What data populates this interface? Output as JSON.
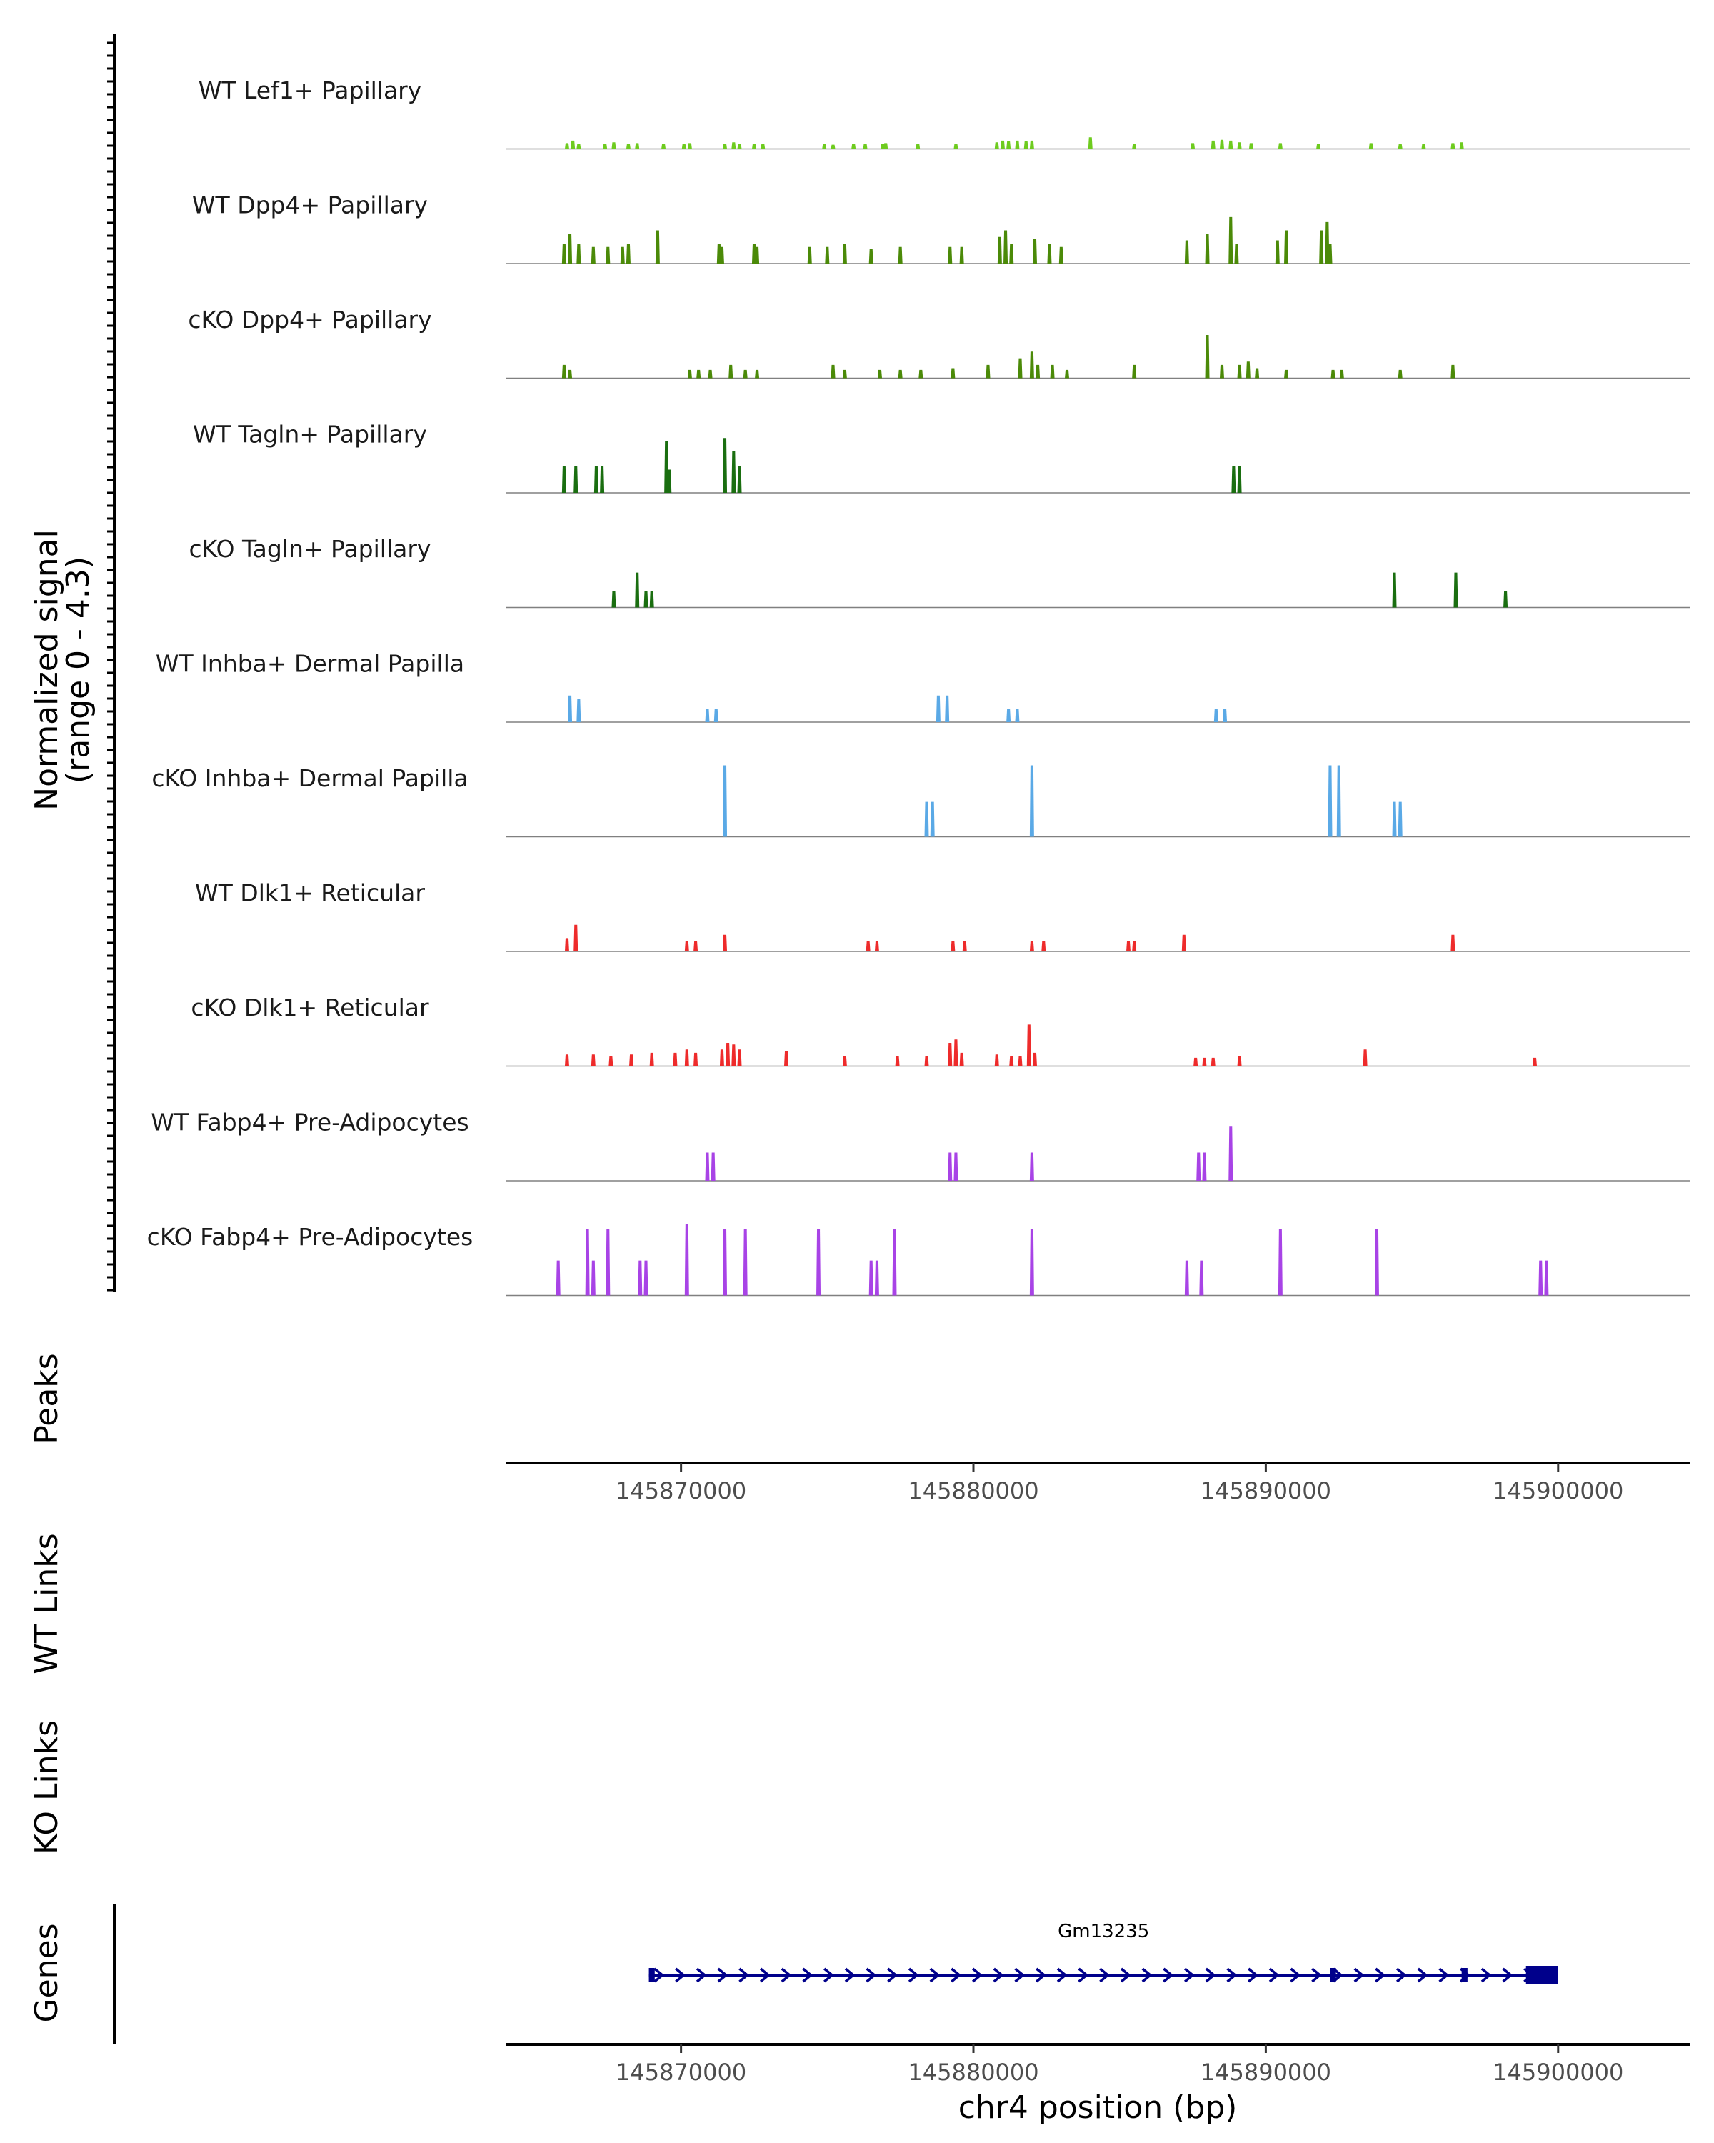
{
  "chart_data": {
    "type": "coverage",
    "chromosome": "chr4",
    "xlabel": "chr4 position (bp)",
    "xlim": [
      145864000,
      145904500
    ],
    "x_ticks": [
      145870000,
      145880000,
      145890000,
      145900000
    ],
    "x_tick_labels": [
      "145870000",
      "145880000",
      "145890000",
      "145900000"
    ],
    "coverage_ylabel_line1": "Normalized signal",
    "coverage_ylabel_line2": "(range 0 - 4.3)",
    "signal_range": [
      0,
      4.3
    ],
    "tracks": [
      {
        "name": "WT Lef1+ Papillary",
        "color": "#6ecb1f",
        "peaks": [
          [
            145866100,
            0.35
          ],
          [
            145866300,
            0.5
          ],
          [
            145866500,
            0.3
          ],
          [
            145867400,
            0.3
          ],
          [
            145867700,
            0.4
          ],
          [
            145868200,
            0.3
          ],
          [
            145868500,
            0.35
          ],
          [
            145869400,
            0.3
          ],
          [
            145870100,
            0.3
          ],
          [
            145870300,
            0.35
          ],
          [
            145871500,
            0.3
          ],
          [
            145871800,
            0.4
          ],
          [
            145872000,
            0.3
          ],
          [
            145872500,
            0.3
          ],
          [
            145872800,
            0.3
          ],
          [
            145874900,
            0.3
          ],
          [
            145875200,
            0.25
          ],
          [
            145875900,
            0.3
          ],
          [
            145876300,
            0.3
          ],
          [
            145876900,
            0.3
          ],
          [
            145877000,
            0.35
          ],
          [
            145878100,
            0.3
          ],
          [
            145879400,
            0.3
          ],
          [
            145880800,
            0.4
          ],
          [
            145881000,
            0.5
          ],
          [
            145881200,
            0.45
          ],
          [
            145881500,
            0.5
          ],
          [
            145881800,
            0.45
          ],
          [
            145882000,
            0.5
          ],
          [
            145884000,
            0.7
          ],
          [
            145885500,
            0.3
          ],
          [
            145887500,
            0.35
          ],
          [
            145888200,
            0.5
          ],
          [
            145888500,
            0.55
          ],
          [
            145888800,
            0.5
          ],
          [
            145889100,
            0.4
          ],
          [
            145889500,
            0.35
          ],
          [
            145890500,
            0.35
          ],
          [
            145891800,
            0.3
          ],
          [
            145893600,
            0.35
          ],
          [
            145894600,
            0.3
          ],
          [
            145895400,
            0.3
          ],
          [
            145896400,
            0.35
          ],
          [
            145896700,
            0.4
          ]
        ]
      },
      {
        "name": "WT Dpp4+ Papillary",
        "color": "#4b8a08",
        "peaks": [
          [
            145866000,
            1.2
          ],
          [
            145866200,
            1.8
          ],
          [
            145866500,
            1.2
          ],
          [
            145867000,
            1.0
          ],
          [
            145867500,
            1.0
          ],
          [
            145868000,
            1.0
          ],
          [
            145868200,
            1.2
          ],
          [
            145869200,
            2.0
          ],
          [
            145871300,
            1.2
          ],
          [
            145871400,
            1.0
          ],
          [
            145872500,
            1.2
          ],
          [
            145872600,
            1.0
          ],
          [
            145874400,
            1.0
          ],
          [
            145875000,
            1.0
          ],
          [
            145875600,
            1.2
          ],
          [
            145876500,
            0.9
          ],
          [
            145877500,
            1.0
          ],
          [
            145879200,
            1.0
          ],
          [
            145879600,
            1.0
          ],
          [
            145880900,
            1.6
          ],
          [
            145881100,
            2.0
          ],
          [
            145881300,
            1.2
          ],
          [
            145882100,
            1.5
          ],
          [
            145882600,
            1.2
          ],
          [
            145883000,
            1.0
          ],
          [
            145887300,
            1.4
          ],
          [
            145888000,
            1.8
          ],
          [
            145888800,
            2.8
          ],
          [
            145889000,
            1.2
          ],
          [
            145890400,
            1.4
          ],
          [
            145890700,
            2.0
          ],
          [
            145891900,
            2.0
          ],
          [
            145892100,
            2.5
          ],
          [
            145892200,
            1.2
          ]
        ]
      },
      {
        "name": "cKO Dpp4+ Papillary",
        "color": "#4b8a08",
        "peaks": [
          [
            145866000,
            0.8
          ],
          [
            145866200,
            0.5
          ],
          [
            145870300,
            0.5
          ],
          [
            145870600,
            0.5
          ],
          [
            145871000,
            0.5
          ],
          [
            145871700,
            0.8
          ],
          [
            145872200,
            0.5
          ],
          [
            145872600,
            0.5
          ],
          [
            145875200,
            0.8
          ],
          [
            145875600,
            0.5
          ],
          [
            145876800,
            0.5
          ],
          [
            145877500,
            0.5
          ],
          [
            145878200,
            0.5
          ],
          [
            145879300,
            0.6
          ],
          [
            145880500,
            0.8
          ],
          [
            145881600,
            1.2
          ],
          [
            145882000,
            1.6
          ],
          [
            145882200,
            0.8
          ],
          [
            145882700,
            0.8
          ],
          [
            145883200,
            0.5
          ],
          [
            145885500,
            0.8
          ],
          [
            145888000,
            2.6
          ],
          [
            145888500,
            0.8
          ],
          [
            145889100,
            0.8
          ],
          [
            145889400,
            1.0
          ],
          [
            145889700,
            0.6
          ],
          [
            145890700,
            0.5
          ],
          [
            145892300,
            0.5
          ],
          [
            145892600,
            0.5
          ],
          [
            145894600,
            0.5
          ],
          [
            145896400,
            0.8
          ]
        ]
      },
      {
        "name": "WT Tagln+ Papillary",
        "color": "#1a6e10",
        "peaks": [
          [
            145866000,
            1.6
          ],
          [
            145866400,
            1.6
          ],
          [
            145867100,
            1.6
          ],
          [
            145867300,
            1.6
          ],
          [
            145869500,
            3.1
          ],
          [
            145869600,
            1.4
          ],
          [
            145871500,
            3.3
          ],
          [
            145871800,
            2.5
          ],
          [
            145872000,
            1.6
          ],
          [
            145888900,
            1.6
          ],
          [
            145889100,
            1.6
          ]
        ]
      },
      {
        "name": "cKO Tagln+ Papillary",
        "color": "#1a6e10",
        "peaks": [
          [
            145867700,
            1.0
          ],
          [
            145868500,
            2.1
          ],
          [
            145868800,
            1.0
          ],
          [
            145869000,
            1.0
          ],
          [
            145894400,
            2.1
          ],
          [
            145896500,
            2.1
          ],
          [
            145898200,
            1.0
          ]
        ]
      },
      {
        "name": "WT Inhba+ Dermal Papilla",
        "color": "#5aa9e6",
        "peaks": [
          [
            145866200,
            1.6
          ],
          [
            145866500,
            1.4
          ],
          [
            145870900,
            0.8
          ],
          [
            145871200,
            0.8
          ],
          [
            145878800,
            1.6
          ],
          [
            145879100,
            1.6
          ],
          [
            145881200,
            0.8
          ],
          [
            145881500,
            0.8
          ],
          [
            145888300,
            0.8
          ],
          [
            145888600,
            0.8
          ]
        ]
      },
      {
        "name": "cKO Inhba+ Dermal Papilla",
        "color": "#5aa9e6",
        "peaks": [
          [
            145871500,
            4.3
          ],
          [
            145878400,
            2.1
          ],
          [
            145878600,
            2.1
          ],
          [
            145882000,
            4.3
          ],
          [
            145892200,
            4.3
          ],
          [
            145892500,
            4.3
          ],
          [
            145894400,
            2.1
          ],
          [
            145894600,
            2.1
          ]
        ]
      },
      {
        "name": "WT Dlk1+ Reticular",
        "color": "#ee2b2b",
        "peaks": [
          [
            145866100,
            0.8
          ],
          [
            145866400,
            1.6
          ],
          [
            145870200,
            0.6
          ],
          [
            145870500,
            0.6
          ],
          [
            145871500,
            1.0
          ],
          [
            145876400,
            0.6
          ],
          [
            145876700,
            0.6
          ],
          [
            145879300,
            0.6
          ],
          [
            145879700,
            0.6
          ],
          [
            145882000,
            0.6
          ],
          [
            145882400,
            0.6
          ],
          [
            145885300,
            0.6
          ],
          [
            145885500,
            0.6
          ],
          [
            145887200,
            1.0
          ],
          [
            145896400,
            1.0
          ]
        ]
      },
      {
        "name": "cKO Dlk1+ Reticular",
        "color": "#ee2b2b",
        "peaks": [
          [
            145866100,
            0.7
          ],
          [
            145867000,
            0.7
          ],
          [
            145867600,
            0.6
          ],
          [
            145868300,
            0.7
          ],
          [
            145869000,
            0.8
          ],
          [
            145869800,
            0.8
          ],
          [
            145870200,
            1.0
          ],
          [
            145870500,
            0.8
          ],
          [
            145871400,
            1.0
          ],
          [
            145871600,
            1.4
          ],
          [
            145871800,
            1.3
          ],
          [
            145872000,
            1.0
          ],
          [
            145873600,
            0.9
          ],
          [
            145875600,
            0.6
          ],
          [
            145877400,
            0.6
          ],
          [
            145878400,
            0.6
          ],
          [
            145879200,
            1.4
          ],
          [
            145879400,
            1.6
          ],
          [
            145879600,
            0.8
          ],
          [
            145880800,
            0.7
          ],
          [
            145881300,
            0.6
          ],
          [
            145881600,
            0.6
          ],
          [
            145881900,
            2.5
          ],
          [
            145882100,
            0.8
          ],
          [
            145887600,
            0.5
          ],
          [
            145887900,
            0.5
          ],
          [
            145888200,
            0.5
          ],
          [
            145889100,
            0.6
          ],
          [
            145893400,
            1.0
          ],
          [
            145899200,
            0.5
          ]
        ]
      },
      {
        "name": "WT Fabp4+ Pre-Adipocytes",
        "color": "#a843e6",
        "peaks": [
          [
            145870900,
            1.7
          ],
          [
            145871100,
            1.7
          ],
          [
            145879200,
            1.7
          ],
          [
            145879400,
            1.7
          ],
          [
            145882000,
            1.7
          ],
          [
            145887700,
            1.7
          ],
          [
            145887900,
            1.7
          ],
          [
            145888800,
            3.3
          ]
        ]
      },
      {
        "name": "cKO Fabp4+ Pre-Adipocytes",
        "color": "#a843e6",
        "peaks": [
          [
            145865800,
            2.1
          ],
          [
            145866800,
            4.0
          ],
          [
            145867000,
            2.1
          ],
          [
            145867500,
            4.0
          ],
          [
            145868600,
            2.1
          ],
          [
            145868800,
            2.1
          ],
          [
            145870200,
            4.3
          ],
          [
            145871500,
            4.0
          ],
          [
            145872200,
            4.0
          ],
          [
            145874700,
            4.0
          ],
          [
            145876500,
            2.1
          ],
          [
            145876700,
            2.1
          ],
          [
            145877300,
            4.0
          ],
          [
            145882000,
            4.0
          ],
          [
            145887300,
            2.1
          ],
          [
            145887800,
            2.1
          ],
          [
            145890500,
            4.0
          ],
          [
            145893800,
            4.0
          ],
          [
            145899400,
            2.1
          ],
          [
            145899600,
            2.1
          ]
        ]
      }
    ],
    "panel_labels": {
      "peaks": "Peaks",
      "wt_links": "WT Links",
      "ko_links": "KO Links",
      "genes": "Genes"
    },
    "gene": {
      "name": "Gm13235",
      "start": 145868900,
      "end": 145900000,
      "strand": "+",
      "color": "#00008b",
      "exons": [
        [
          145868900,
          145869100
        ],
        [
          145892200,
          145892400
        ],
        [
          145896700,
          145896900
        ],
        [
          145898900,
          145900000
        ]
      ]
    }
  }
}
